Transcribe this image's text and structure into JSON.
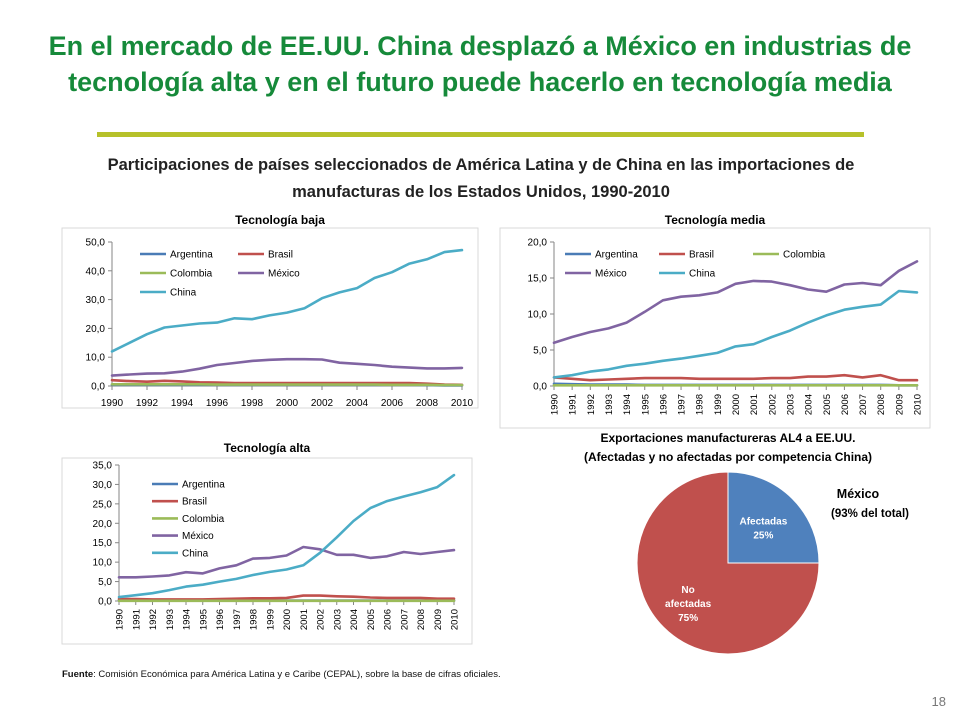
{
  "slide": {
    "title": "En el mercado de EE.UU. China desplazó a México en industrias de tecnología alta y en el futuro puede hacerlo en tecnología media",
    "subtitle": "Participaciones de países seleccionados de América Latina y de China en las importaciones de manufacturas de los Estados Unidos, 1990-2010",
    "footnote_label": "Fuente",
    "footnote_text": ": Comisión Económica para América Latina y e Caribe (CEPAL), sobre la base de cifras oficiales.",
    "page_number": "18"
  },
  "colors": {
    "title": "#168a3a",
    "rule": "#b6c12a",
    "argentina": "#4a7cb6",
    "brasil": "#c0504d",
    "colombia": "#9bbb59",
    "mexico": "#8064a2",
    "china": "#4bacc6",
    "pie_affected": "#4f81bd",
    "pie_not": "#c0504d"
  },
  "chart_data": [
    {
      "type": "line",
      "title": "Tecnología baja",
      "x": [
        1990,
        1991,
        1992,
        1993,
        1994,
        1995,
        1996,
        1997,
        1998,
        1999,
        2000,
        2001,
        2002,
        2003,
        2004,
        2005,
        2006,
        2007,
        2008,
        2009,
        2010
      ],
      "x_tick_labels": [
        "1990",
        "1992",
        "1994",
        "1996",
        "1998",
        "2000",
        "2002",
        "2004",
        "2006",
        "2008",
        "2010"
      ],
      "y_tick_labels": [
        "0,0",
        "10,0",
        "20,0",
        "30,0",
        "40,0",
        "50,0"
      ],
      "ylim": [
        0,
        50
      ],
      "legend": "top-left",
      "series": [
        {
          "name": "Argentina",
          "color_key": "argentina",
          "values": [
            0.4,
            0.4,
            0.4,
            0.4,
            0.4,
            0.4,
            0.4,
            0.4,
            0.4,
            0.4,
            0.4,
            0.4,
            0.4,
            0.4,
            0.4,
            0.4,
            0.4,
            0.4,
            0.3,
            0.2,
            0.2
          ]
        },
        {
          "name": "Brasil",
          "color_key": "brasil",
          "values": [
            2.0,
            1.7,
            1.5,
            1.8,
            1.6,
            1.3,
            1.2,
            1.0,
            1.0,
            1.0,
            1.0,
            1.0,
            1.0,
            1.0,
            1.0,
            1.0,
            1.0,
            1.0,
            0.8,
            0.5,
            0.4
          ]
        },
        {
          "name": "Colombia",
          "color_key": "colombia",
          "values": [
            0.6,
            0.6,
            0.6,
            0.6,
            0.6,
            0.6,
            0.5,
            0.5,
            0.5,
            0.5,
            0.5,
            0.5,
            0.5,
            0.5,
            0.5,
            0.5,
            0.4,
            0.4,
            0.4,
            0.3,
            0.3
          ]
        },
        {
          "name": "México",
          "color_key": "mexico",
          "values": [
            3.6,
            4.0,
            4.3,
            4.4,
            5.0,
            6.0,
            7.3,
            8.0,
            8.7,
            9.1,
            9.3,
            9.3,
            9.2,
            8.1,
            7.7,
            7.3,
            6.7,
            6.4,
            6.1,
            6.1,
            6.3
          ]
        },
        {
          "name": "China",
          "color_key": "china",
          "values": [
            12.0,
            15.0,
            18.0,
            20.3,
            21.0,
            21.7,
            22.0,
            23.5,
            23.2,
            24.5,
            25.5,
            27.0,
            30.5,
            32.5,
            34.0,
            37.5,
            39.5,
            42.5,
            44.0,
            46.5,
            47.2
          ]
        }
      ]
    },
    {
      "type": "line",
      "title": "Tecnología media",
      "x": [
        1990,
        1991,
        1992,
        1993,
        1994,
        1995,
        1996,
        1997,
        1998,
        1999,
        2000,
        2001,
        2002,
        2003,
        2004,
        2005,
        2006,
        2007,
        2008,
        2009,
        2010
      ],
      "x_tick_labels": [
        "1990",
        "1991",
        "1992",
        "1993",
        "1994",
        "1995",
        "1996",
        "1997",
        "1998",
        "1999",
        "2000",
        "2001",
        "2002",
        "2003",
        "2004",
        "2005",
        "2006",
        "2007",
        "2008",
        "2009",
        "2010"
      ],
      "y_tick_labels": [
        "0,0",
        "5,0",
        "10,0",
        "15,0",
        "20,0"
      ],
      "ylim": [
        0,
        20
      ],
      "legend": "top",
      "series": [
        {
          "name": "Argentina",
          "color_key": "argentina",
          "values": [
            0.3,
            0.25,
            0.2,
            0.2,
            0.2,
            0.15,
            0.15,
            0.15,
            0.15,
            0.15,
            0.15,
            0.15,
            0.15,
            0.15,
            0.15,
            0.15,
            0.15,
            0.15,
            0.15,
            0.1,
            0.1
          ]
        },
        {
          "name": "Brasil",
          "color_key": "brasil",
          "values": [
            1.2,
            1.0,
            0.8,
            0.9,
            1.0,
            1.1,
            1.1,
            1.1,
            1.0,
            1.0,
            1.0,
            1.0,
            1.1,
            1.1,
            1.3,
            1.3,
            1.5,
            1.2,
            1.5,
            0.8,
            0.8
          ]
        },
        {
          "name": "Colombia",
          "color_key": "colombia",
          "values": [
            0.1,
            0.1,
            0.1,
            0.1,
            0.1,
            0.1,
            0.1,
            0.1,
            0.1,
            0.1,
            0.1,
            0.1,
            0.1,
            0.1,
            0.1,
            0.1,
            0.1,
            0.1,
            0.1,
            0.1,
            0.1
          ]
        },
        {
          "name": "México",
          "color_key": "mexico",
          "values": [
            6.0,
            6.8,
            7.5,
            8.0,
            8.8,
            10.3,
            11.9,
            12.4,
            12.6,
            13.0,
            14.2,
            14.6,
            14.5,
            14.0,
            13.4,
            13.1,
            14.1,
            14.3,
            14.0,
            16.0,
            17.3
          ]
        },
        {
          "name": "China",
          "color_key": "china",
          "values": [
            1.2,
            1.5,
            2.0,
            2.3,
            2.8,
            3.1,
            3.5,
            3.8,
            4.2,
            4.6,
            5.5,
            5.8,
            6.8,
            7.7,
            8.8,
            9.8,
            10.6,
            11.0,
            11.3,
            13.2,
            13.0
          ]
        }
      ]
    },
    {
      "type": "line",
      "title": "Tecnología alta",
      "x": [
        1990,
        1991,
        1992,
        1993,
        1994,
        1995,
        1996,
        1997,
        1998,
        1999,
        2000,
        2001,
        2002,
        2003,
        2004,
        2005,
        2006,
        2007,
        2008,
        2009,
        2010
      ],
      "x_tick_labels": [
        "1990",
        "1991",
        "1992",
        "1993",
        "1994",
        "1995",
        "1996",
        "1997",
        "1998",
        "1999",
        "2000",
        "2001",
        "2002",
        "2003",
        "2004",
        "2005",
        "2006",
        "2007",
        "2008",
        "2009",
        "2010"
      ],
      "y_tick_labels": [
        "0,0",
        "5,0",
        "10,0",
        "15,0",
        "20,0",
        "25,0",
        "30,0",
        "35,0"
      ],
      "ylim": [
        0,
        35
      ],
      "legend": "top-left",
      "series": [
        {
          "name": "Argentina",
          "color_key": "argentina",
          "values": [
            0.1,
            0.1,
            0.1,
            0.1,
            0.1,
            0.1,
            0.1,
            0.1,
            0.1,
            0.1,
            0.1,
            0.1,
            0.1,
            0.1,
            0.1,
            0.1,
            0.1,
            0.1,
            0.1,
            0.1,
            0.1
          ]
        },
        {
          "name": "Brasil",
          "color_key": "brasil",
          "values": [
            0.5,
            0.5,
            0.4,
            0.4,
            0.4,
            0.4,
            0.5,
            0.6,
            0.7,
            0.7,
            0.8,
            1.4,
            1.4,
            1.2,
            1.1,
            0.9,
            0.8,
            0.8,
            0.8,
            0.6,
            0.6
          ]
        },
        {
          "name": "Colombia",
          "color_key": "colombia",
          "values": [
            0.05,
            0.05,
            0.05,
            0.05,
            0.05,
            0.05,
            0.05,
            0.05,
            0.05,
            0.05,
            0.05,
            0.05,
            0.05,
            0.05,
            0.05,
            0.05,
            0.05,
            0.05,
            0.05,
            0.05,
            0.05
          ]
        },
        {
          "name": "México",
          "color_key": "mexico",
          "values": [
            6.1,
            6.1,
            6.3,
            6.6,
            7.4,
            7.1,
            8.4,
            9.2,
            10.9,
            11.1,
            11.7,
            13.9,
            13.3,
            11.9,
            11.9,
            11.1,
            11.5,
            12.6,
            12.1,
            12.6,
            13.1
          ]
        },
        {
          "name": "China",
          "color_key": "china",
          "values": [
            1.0,
            1.5,
            2.0,
            2.8,
            3.7,
            4.2,
            5.0,
            5.7,
            6.7,
            7.5,
            8.1,
            9.2,
            12.4,
            16.4,
            20.6,
            23.9,
            25.7,
            26.9,
            28.0,
            29.3,
            32.4
          ]
        }
      ]
    },
    {
      "type": "pie",
      "title": "Exportaciones manufactureras AL4 a EE.UU.",
      "subtitle": "(Afectadas y no afectadas por competencia China)",
      "annotation_title": "México",
      "annotation_sub": "(93% del total)",
      "slices": [
        {
          "label_lines": [
            "Afectadas",
            "25%"
          ],
          "value": 25,
          "color_key": "pie_affected"
        },
        {
          "label_lines": [
            "No",
            "afectadas",
            "75%"
          ],
          "value": 75,
          "color_key": "pie_not"
        }
      ]
    }
  ]
}
